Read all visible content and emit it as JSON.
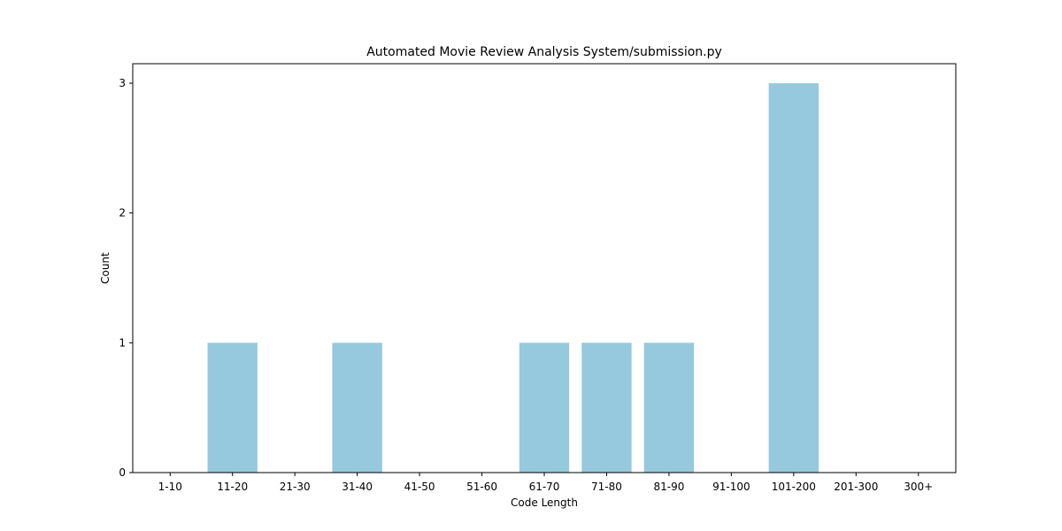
{
  "chart_data": {
    "type": "bar",
    "title": "Automated Movie Review Analysis System/submission.py",
    "xlabel": "Code Length",
    "ylabel": "Count",
    "categories": [
      "1-10",
      "11-20",
      "21-30",
      "31-40",
      "41-50",
      "51-60",
      "61-70",
      "71-80",
      "81-90",
      "91-100",
      "101-200",
      "201-300",
      "300+"
    ],
    "values": [
      0,
      1,
      0,
      1,
      0,
      0,
      1,
      1,
      1,
      0,
      3,
      0,
      0
    ],
    "ylim": [
      0,
      3.15
    ],
    "yticks": [
      0,
      1,
      2,
      3
    ],
    "bar_color": "#96c9dd",
    "grid": false,
    "legend": "none"
  }
}
